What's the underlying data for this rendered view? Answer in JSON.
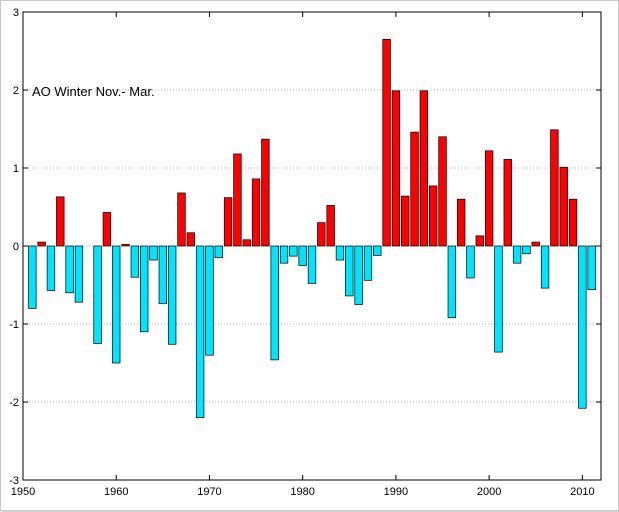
{
  "chart_data": {
    "type": "bar",
    "title": "AO Winter Nov.- Mar.",
    "xlabel": "",
    "ylabel": "",
    "xlim": [
      1950,
      2012
    ],
    "ylim": [
      -3,
      3
    ],
    "x_ticks": [
      1950,
      1960,
      1970,
      1980,
      1990,
      2000,
      2010
    ],
    "y_ticks": [
      -3,
      -2,
      -1,
      0,
      1,
      2,
      3
    ],
    "grid": "horizontal dotted",
    "positive_color": "#ff0000",
    "negative_color": "#00e5ff",
    "x": [
      1951,
      1952,
      1953,
      1954,
      1955,
      1956,
      1957,
      1958,
      1959,
      1960,
      1961,
      1962,
      1963,
      1964,
      1965,
      1966,
      1967,
      1968,
      1969,
      1970,
      1971,
      1972,
      1973,
      1974,
      1975,
      1976,
      1977,
      1978,
      1979,
      1980,
      1981,
      1982,
      1983,
      1984,
      1985,
      1986,
      1987,
      1988,
      1989,
      1990,
      1991,
      1992,
      1993,
      1994,
      1995,
      1996,
      1997,
      1998,
      1999,
      2000,
      2001,
      2002,
      2003,
      2004,
      2005,
      2006,
      2007,
      2008,
      2009,
      2010,
      2011
    ],
    "values": [
      -0.8,
      0.05,
      -0.57,
      0.63,
      -0.6,
      -0.72,
      0.0,
      -1.25,
      0.43,
      -1.5,
      0.02,
      -0.4,
      -1.1,
      -0.18,
      -0.74,
      -1.26,
      0.68,
      0.17,
      -2.2,
      -1.4,
      -0.15,
      0.62,
      1.18,
      0.08,
      0.86,
      1.37,
      -1.46,
      -0.22,
      -0.13,
      -0.25,
      -0.48,
      0.3,
      0.52,
      -0.18,
      -0.64,
      -0.75,
      -0.44,
      -0.12,
      2.65,
      1.99,
      0.64,
      1.46,
      1.99,
      0.77,
      1.4,
      -0.92,
      0.6,
      -0.41,
      0.13,
      1.22,
      -1.36,
      1.11,
      -0.22,
      -0.1,
      0.05,
      -0.54,
      1.49,
      1.01,
      0.6,
      -2.08,
      -0.56
    ]
  }
}
